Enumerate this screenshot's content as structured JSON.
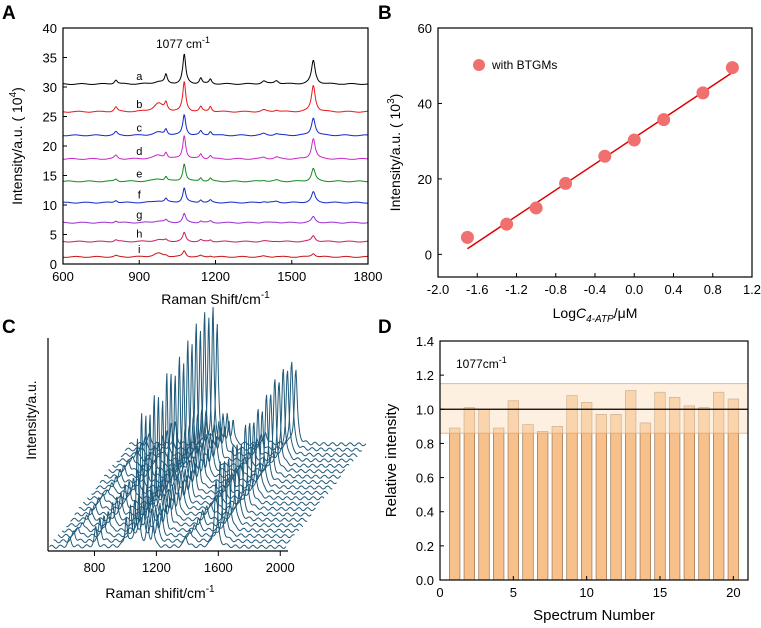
{
  "chart_data": [
    {
      "panel": "A",
      "type": "line",
      "title": "",
      "xlabel": "Raman Shift/cm",
      "xlabel_sup": "-1",
      "ylabel": "Intensity/a.u. ( 10",
      "ylabel_sup": "4",
      "ylabel_end": ")",
      "xlim": [
        600,
        1800
      ],
      "ylim": [
        0,
        40
      ],
      "xticks": [
        600,
        900,
        1200,
        1500,
        1800
      ],
      "yticks": [
        0,
        5,
        10,
        15,
        20,
        25,
        30,
        35,
        40
      ],
      "annotation": "1077 cm",
      "annotation_sup": "-1",
      "peaks": [
        {
          "pos": 1077,
          "w": 7
        },
        {
          "pos": 1585,
          "w": 9
        },
        {
          "pos": 1005,
          "w": 6
        },
        {
          "pos": 1142,
          "w": 6
        },
        {
          "pos": 1180,
          "w": 6
        },
        {
          "pos": 808,
          "w": 7
        },
        {
          "pos": 975,
          "w": 22
        },
        {
          "pos": 1390,
          "w": 10
        },
        {
          "pos": 1440,
          "w": 10
        }
      ],
      "series": [
        {
          "name": "a",
          "color": "#000000",
          "baseline": 30.5,
          "amps": [
            5.0,
            4.0,
            1.5,
            1.0,
            0.8,
            0.7,
            0.4,
            0.5,
            0.6
          ]
        },
        {
          "name": "b",
          "color": "#e8191c",
          "baseline": 25.8,
          "amps": [
            5.0,
            4.5,
            1.3,
            0.8,
            0.9,
            0.8,
            1.4,
            0.3,
            0.3
          ]
        },
        {
          "name": "c",
          "color": "#1428c8",
          "baseline": 21.8,
          "amps": [
            3.5,
            3.0,
            1.0,
            0.7,
            0.7,
            0.6,
            0.5,
            0.3,
            0.3
          ]
        },
        {
          "name": "d",
          "color": "#c828c8",
          "baseline": 17.8,
          "amps": [
            4.0,
            3.5,
            1.0,
            0.8,
            0.6,
            0.6,
            0.6,
            0.3,
            0.3
          ]
        },
        {
          "name": "e",
          "color": "#138a23",
          "baseline": 14.0,
          "amps": [
            3.0,
            2.2,
            0.7,
            0.6,
            0.5,
            0.4,
            0.4,
            0.2,
            0.2
          ]
        },
        {
          "name": "f",
          "color": "#1428c8",
          "baseline": 10.4,
          "amps": [
            2.5,
            1.8,
            0.6,
            0.5,
            0.4,
            0.4,
            0.3,
            0.2,
            0.2
          ]
        },
        {
          "name": "g",
          "color": "#9b2fd0",
          "baseline": 7.0,
          "amps": [
            1.5,
            1.0,
            0.4,
            0.3,
            0.3,
            0.3,
            0.3,
            0.1,
            0.1
          ]
        },
        {
          "name": "h",
          "color": "#c81e64",
          "baseline": 3.8,
          "amps": [
            1.5,
            1.0,
            0.3,
            0.3,
            0.3,
            0.3,
            0.3,
            0.1,
            0.1
          ]
        },
        {
          "name": "i",
          "color": "#c81414",
          "baseline": 1.2,
          "amps": [
            1.0,
            0.6,
            0.2,
            0.2,
            0.2,
            0.2,
            0.6,
            0.1,
            0.1
          ]
        }
      ]
    },
    {
      "panel": "B",
      "type": "scatter",
      "title": "",
      "xlabel_prefix": "Log",
      "xlabel_var": "C",
      "xlabel_sub": "4-ATP",
      "xlabel_suffix": "/μM",
      "ylabel": "Intensity/a.u. ( 10",
      "ylabel_sup": "3",
      "ylabel_end": ")",
      "xlim": [
        -2.0,
        1.2
      ],
      "ylim": [
        -6,
        60
      ],
      "xticks": [
        -2.0,
        -1.6,
        -1.2,
        -0.8,
        -0.4,
        0.0,
        0.4,
        0.8,
        1.2
      ],
      "xtick_labels": [
        "-2.0",
        "-1.6",
        "-1.2",
        "-0.8",
        "-0.4",
        "0.0",
        "0.4",
        "0.8",
        "1.2"
      ],
      "yticks": [
        0,
        20,
        40,
        60
      ],
      "legend": "with BTGMs",
      "point_color": "#f07070",
      "fit_color": "#e00000",
      "x": [
        -1.7,
        -1.3,
        -1.0,
        -0.7,
        -0.3,
        0.0,
        0.3,
        0.7,
        1.0
      ],
      "y": [
        4.5,
        8.0,
        12.3,
        18.8,
        26.0,
        30.3,
        35.7,
        42.8,
        49.5
      ],
      "fit": {
        "x": [
          -1.7,
          1.0
        ],
        "y": [
          1.5,
          48.2
        ]
      }
    },
    {
      "panel": "C",
      "type": "line",
      "title": "",
      "xlabel": "Raman shifit/cm",
      "xlabel_sup": "-1",
      "ylabel": "Intensity/a.u.",
      "xlim": [
        500,
        2050
      ],
      "xticks": [
        800,
        1200,
        1600,
        2000
      ],
      "line_color": "#1f5a7a",
      "n_spectra": 20,
      "peaks": [
        {
          "pos": 1077,
          "w": 9,
          "amp": 1.0
        },
        {
          "pos": 1585,
          "w": 11,
          "amp": 0.62
        },
        {
          "pos": 1005,
          "w": 8,
          "amp": 0.28
        },
        {
          "pos": 1142,
          "w": 8,
          "amp": 0.22
        },
        {
          "pos": 1180,
          "w": 8,
          "amp": 0.2
        },
        {
          "pos": 808,
          "w": 9,
          "amp": 0.18
        },
        {
          "pos": 640,
          "w": 12,
          "amp": 0.08
        },
        {
          "pos": 1390,
          "w": 12,
          "amp": 0.1
        }
      ],
      "scales": [
        0.72,
        0.85,
        0.8,
        0.78,
        0.88,
        0.83,
        0.76,
        0.9,
        0.86,
        0.82,
        0.92,
        0.84,
        0.95,
        0.88,
        0.98,
        0.9,
        1.0,
        0.93,
        0.96,
        0.8
      ]
    },
    {
      "panel": "D",
      "type": "bar",
      "title": "",
      "xlabel": "Spectrum Number",
      "ylabel": "Relative intensity",
      "annotation": "1077cm",
      "annotation_sup": "-1",
      "xlim": [
        0,
        21
      ],
      "ylim": [
        0.0,
        1.4
      ],
      "xticks": [
        0,
        5,
        10,
        15,
        20
      ],
      "yticks": [
        0.0,
        0.2,
        0.4,
        0.6,
        0.8,
        1.0,
        1.2,
        1.4
      ],
      "ytick_labels": [
        "0.0",
        "0.2",
        "0.4",
        "0.6",
        "0.8",
        "1.0",
        "1.2",
        "1.4"
      ],
      "bar_color": "#f8c08a",
      "band_color": "#fbe3c8",
      "band": [
        0.86,
        1.15
      ],
      "reference_line": 1.0,
      "categories": [
        1,
        2,
        3,
        4,
        5,
        6,
        7,
        8,
        9,
        10,
        11,
        12,
        13,
        14,
        15,
        16,
        17,
        18,
        19,
        20
      ],
      "values": [
        0.89,
        1.01,
        1.0,
        0.89,
        1.05,
        0.91,
        0.87,
        0.9,
        1.08,
        1.04,
        0.97,
        0.97,
        1.11,
        0.92,
        1.1,
        1.07,
        1.02,
        1.01,
        1.1,
        1.06
      ]
    }
  ]
}
